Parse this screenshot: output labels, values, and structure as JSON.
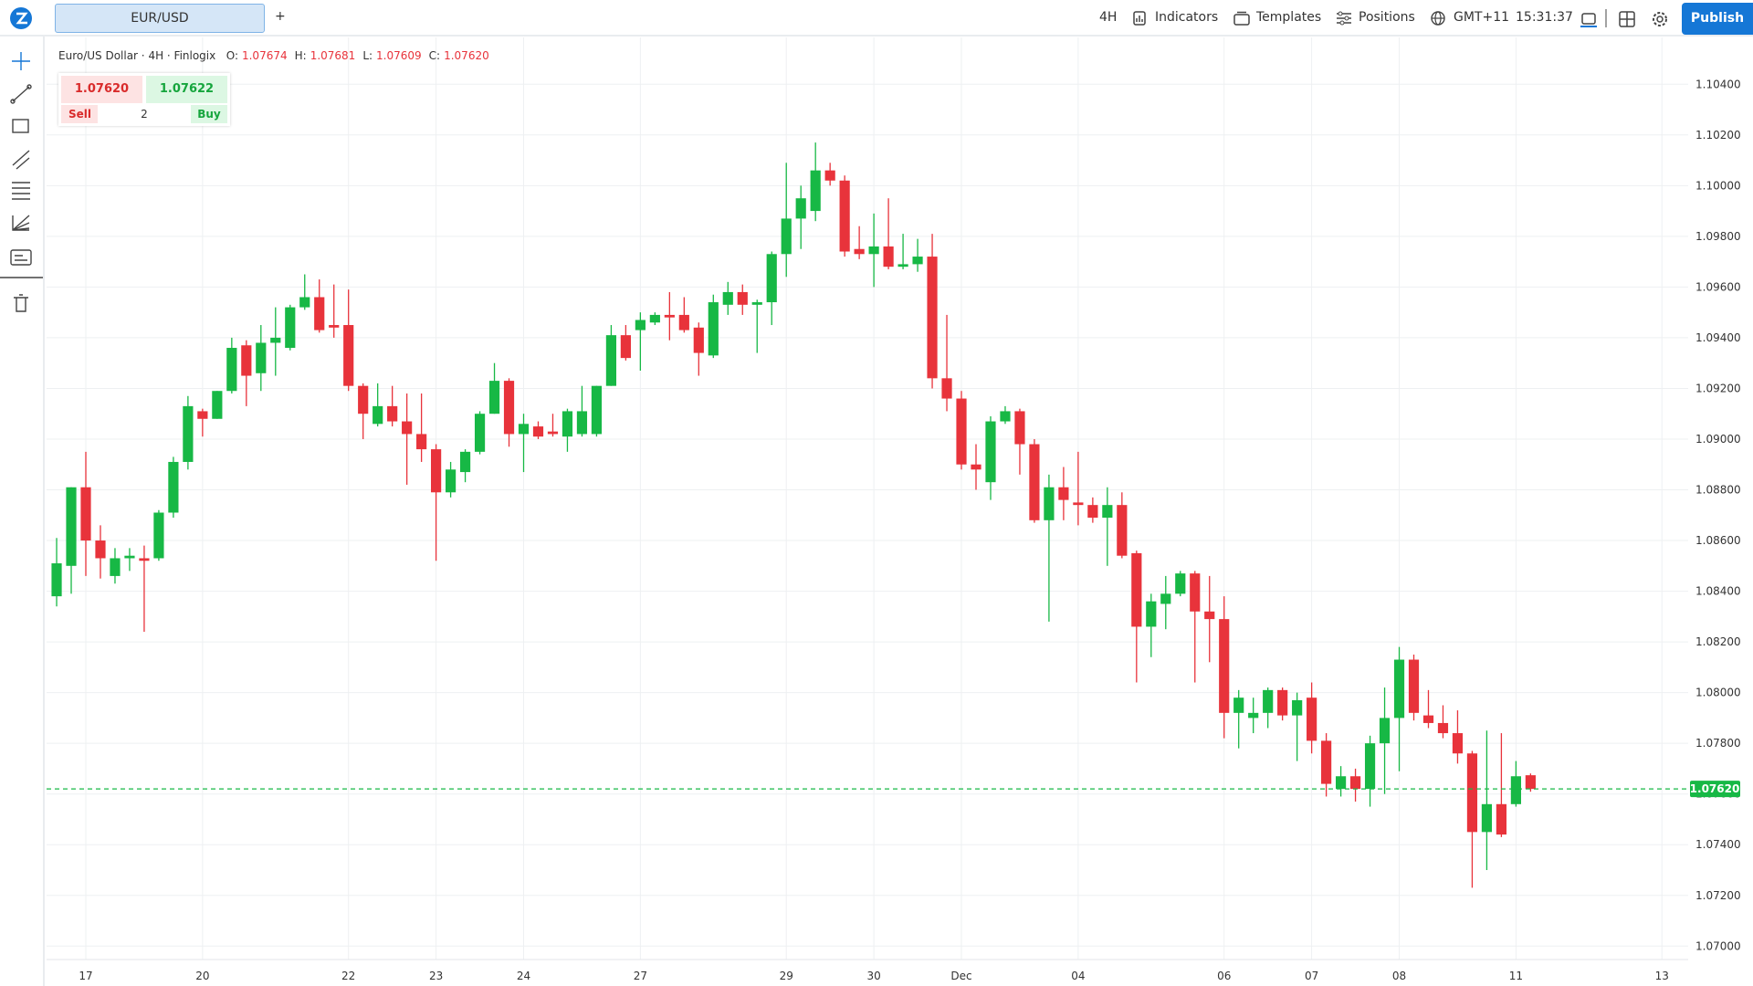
{
  "ui": {
    "symbol_tab": "EUR/USD",
    "add_tab": "+",
    "interval": "4H",
    "menu": [
      "Indicators",
      "Templates",
      "Positions"
    ],
    "timezone": "GMT+11",
    "clock": "15:31:37",
    "publish": "Publish",
    "legend_title": "Euro/US Dollar · 4H · Finlogix",
    "ohlc": [
      {
        "label": "O:",
        "value": "1.07674"
      },
      {
        "label": "H:",
        "value": "1.07681"
      },
      {
        "label": "L:",
        "value": "1.07609"
      },
      {
        "label": "C:",
        "value": "1.07620"
      }
    ],
    "trade": {
      "sell_price": "1.07620",
      "buy_price": "1.07622",
      "sell": "Sell",
      "buy": "Buy",
      "quantity": 2
    }
  },
  "chart_data": {
    "type": "candlestick",
    "up_color": "#17b845",
    "down_color": "#e8333b",
    "grid": true,
    "open": [
      1.0838,
      1.085,
      1.0881,
      1.086,
      1.0846,
      1.0853,
      1.0853,
      1.0853,
      1.0871,
      1.0891,
      1.0911,
      1.0908,
      1.0919,
      1.0937,
      1.0926,
      1.0938,
      1.0936,
      1.0952,
      1.0956,
      1.0945,
      1.0945,
      1.0921,
      1.0906,
      1.0913,
      1.0907,
      1.0902,
      1.0896,
      1.0879,
      1.0887,
      1.0895,
      1.091,
      1.0923,
      1.0902,
      1.0905,
      1.0903,
      1.0901,
      1.0902,
      1.0902,
      1.0921,
      1.0941,
      1.0943,
      1.0946,
      1.0949,
      1.0949,
      1.0944,
      1.0933,
      1.0953,
      1.0958,
      1.0953,
      1.0954,
      1.0973,
      1.0987,
      1.099,
      1.1006,
      1.1002,
      1.0975,
      1.0973,
      1.0976,
      1.0968,
      1.0969,
      1.0972,
      1.0924,
      1.0916,
      1.089,
      1.0883,
      1.0907,
      1.0911,
      1.0898,
      1.0868,
      1.0881,
      1.0875,
      1.0874,
      1.0869,
      1.0874,
      1.0855,
      1.0826,
      1.0835,
      1.0839,
      1.0847,
      1.0832,
      1.0829,
      1.0792,
      1.079,
      1.0792,
      1.0801,
      1.0791,
      1.0798,
      1.0781,
      1.0762,
      1.0767,
      1.0762,
      1.078,
      1.079,
      1.0813,
      1.0791,
      1.0788,
      1.0784,
      1.0776,
      1.0745,
      1.0756,
      1.0756,
      1.07674
    ],
    "high": [
      1.0861,
      1.0881,
      1.0895,
      1.0866,
      1.0857,
      1.0857,
      1.0858,
      1.0872,
      1.0893,
      1.0917,
      1.0912,
      1.0919,
      1.094,
      1.0939,
      1.0945,
      1.0952,
      1.0953,
      1.0965,
      1.0963,
      1.0961,
      1.0959,
      1.0922,
      1.0922,
      1.0921,
      1.0918,
      1.0918,
      1.0898,
      1.0891,
      1.0896,
      1.0911,
      1.093,
      1.0924,
      1.091,
      1.0907,
      1.091,
      1.0912,
      1.0921,
      1.0921,
      1.0945,
      1.0945,
      1.095,
      1.095,
      1.0958,
      1.0956,
      1.0946,
      1.0957,
      1.0962,
      1.0961,
      1.0955,
      1.0974,
      1.1009,
      1.1,
      1.1017,
      1.1009,
      1.1004,
      1.0984,
      1.0989,
      1.0995,
      1.0981,
      1.0979,
      1.0981,
      1.0949,
      1.0919,
      1.0898,
      1.0909,
      1.0913,
      1.0912,
      1.09,
      1.0886,
      1.0889,
      1.0895,
      1.0877,
      1.0881,
      1.0879,
      1.0856,
      1.0839,
      1.0846,
      1.0848,
      1.0848,
      1.0846,
      1.0838,
      1.0801,
      1.0798,
      1.0802,
      1.0802,
      1.08,
      1.0804,
      1.0784,
      1.0771,
      1.077,
      1.0783,
      1.0802,
      1.0818,
      1.0815,
      1.0801,
      1.0795,
      1.0793,
      1.0777,
      1.0785,
      1.0784,
      1.0773,
      1.07681
    ],
    "low": [
      1.0834,
      1.0839,
      1.0846,
      1.0845,
      1.0843,
      1.0848,
      1.0824,
      1.0852,
      1.0869,
      1.0888,
      1.0901,
      1.0908,
      1.0918,
      1.0913,
      1.0919,
      1.0925,
      1.0935,
      1.0951,
      1.0942,
      1.094,
      1.0919,
      1.09,
      1.0905,
      1.0905,
      1.0882,
      1.0891,
      1.0852,
      1.0877,
      1.0883,
      1.0894,
      1.091,
      1.0897,
      1.0887,
      1.09,
      1.0901,
      1.0895,
      1.0901,
      1.0901,
      1.0921,
      1.0931,
      1.0927,
      1.0945,
      1.0939,
      1.0942,
      1.0925,
      1.0932,
      1.0949,
      1.0949,
      1.0934,
      1.0945,
      1.0964,
      1.0975,
      1.0986,
      1.1,
      1.0972,
      1.0971,
      1.096,
      1.0967,
      1.0967,
      1.0966,
      1.092,
      1.0911,
      1.0888,
      1.088,
      1.0876,
      1.0906,
      1.0886,
      1.0867,
      1.0828,
      1.0868,
      1.0866,
      1.0867,
      1.085,
      1.0853,
      1.0804,
      1.0814,
      1.0825,
      1.0838,
      1.0804,
      1.0812,
      1.0782,
      1.0778,
      1.0784,
      1.0786,
      1.0789,
      1.0773,
      1.0776,
      1.0759,
      1.0759,
      1.0757,
      1.0755,
      1.076,
      1.0769,
      1.0789,
      1.0786,
      1.0782,
      1.0772,
      1.0723,
      1.073,
      1.0743,
      1.0755,
      1.07609
    ],
    "close": [
      1.0851,
      1.0881,
      1.086,
      1.0853,
      1.0853,
      1.0854,
      1.0852,
      1.0871,
      1.0891,
      1.0913,
      1.0908,
      1.0919,
      1.0936,
      1.0925,
      1.0938,
      1.094,
      1.0952,
      1.0956,
      1.0943,
      1.0944,
      1.0921,
      1.091,
      1.0913,
      1.0907,
      1.0902,
      1.0896,
      1.0879,
      1.0888,
      1.0895,
      1.091,
      1.0923,
      1.0902,
      1.0906,
      1.0901,
      1.0902,
      1.0911,
      1.0911,
      1.0921,
      1.0941,
      1.0932,
      1.0947,
      1.0949,
      1.0948,
      1.0943,
      1.0934,
      1.0954,
      1.0958,
      1.0953,
      1.0954,
      1.0973,
      1.0987,
      1.0995,
      1.1006,
      1.1002,
      1.0974,
      1.0973,
      1.0976,
      1.0968,
      1.0969,
      1.0972,
      1.0924,
      1.0916,
      1.089,
      1.0888,
      1.0907,
      1.0911,
      1.0898,
      1.0868,
      1.0881,
      1.0876,
      1.0874,
      1.0869,
      1.0874,
      1.0854,
      1.0826,
      1.0836,
      1.0839,
      1.0847,
      1.0832,
      1.0829,
      1.0792,
      1.0798,
      1.0792,
      1.0801,
      1.0791,
      1.0797,
      1.0781,
      1.0764,
      1.0767,
      1.0762,
      1.078,
      1.079,
      1.0813,
      1.0792,
      1.0788,
      1.0784,
      1.0776,
      1.0745,
      1.0756,
      1.0744,
      1.0767,
      1.0762
    ],
    "xlim": [
      -0.69,
      111.8
    ],
    "xticks": [
      {
        "value": 2,
        "label": "17"
      },
      {
        "value": 10,
        "label": "20"
      },
      {
        "value": 20,
        "label": "22"
      },
      {
        "value": 26,
        "label": "23"
      },
      {
        "value": 32,
        "label": "24"
      },
      {
        "value": 40,
        "label": "27"
      },
      {
        "value": 50,
        "label": "29"
      },
      {
        "value": 56,
        "label": "30"
      },
      {
        "value": 62,
        "label": "Dec"
      },
      {
        "value": 70,
        "label": "04"
      },
      {
        "value": 80,
        "label": "06"
      },
      {
        "value": 86,
        "label": "07"
      },
      {
        "value": 92,
        "label": "08"
      },
      {
        "value": 100,
        "label": "11"
      },
      {
        "value": 110,
        "label": "13"
      }
    ],
    "ylim": [
      1.06947,
      1.10563
    ],
    "yticks": [
      {
        "value": 1.07,
        "label": "1.07000"
      },
      {
        "value": 1.072,
        "label": "1.07200"
      },
      {
        "value": 1.074,
        "label": "1.07400"
      },
      {
        "value": 1.076,
        "label": "1.07600"
      },
      {
        "value": 1.078,
        "label": "1.07800"
      },
      {
        "value": 1.08,
        "label": "1.08000"
      },
      {
        "value": 1.082,
        "label": "1.08200"
      },
      {
        "value": 1.084,
        "label": "1.08400"
      },
      {
        "value": 1.086,
        "label": "1.08600"
      },
      {
        "value": 1.088,
        "label": "1.08800"
      },
      {
        "value": 1.09,
        "label": "1.09000"
      },
      {
        "value": 1.092,
        "label": "1.09200"
      },
      {
        "value": 1.094,
        "label": "1.09400"
      },
      {
        "value": 1.096,
        "label": "1.09600"
      },
      {
        "value": 1.098,
        "label": "1.09800"
      },
      {
        "value": 1.1,
        "label": "1.10000"
      },
      {
        "value": 1.102,
        "label": "1.10200"
      },
      {
        "value": 1.104,
        "label": "1.10400"
      }
    ],
    "last_price": {
      "value": 1.0762,
      "label": "1.07620"
    }
  }
}
